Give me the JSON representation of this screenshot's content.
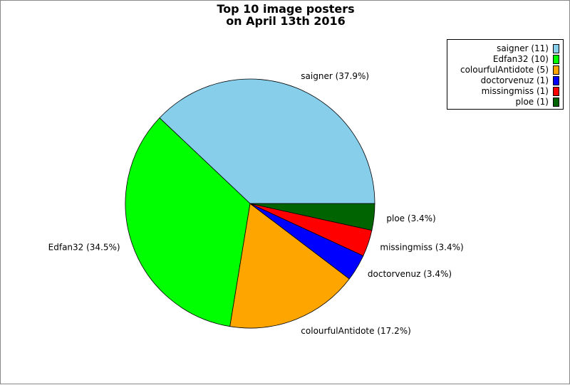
{
  "chart_data": {
    "type": "pie",
    "title": [
      "Top 10 image posters",
      "on April 13th 2016"
    ],
    "slices": [
      {
        "name": "saigner",
        "count": 11,
        "percent": 37.9,
        "label": "saigner (37.9%)",
        "legend": "saigner (11)",
        "color": "#87ceeb"
      },
      {
        "name": "Edfan32",
        "count": 10,
        "percent": 34.5,
        "label": "Edfan32 (34.5%)",
        "legend": "Edfan32 (10)",
        "color": "#00ff00"
      },
      {
        "name": "colourfulAntidote",
        "count": 5,
        "percent": 17.2,
        "label": "colourfulAntidote (17.2%)",
        "legend": "colourfulAntidote (5)",
        "color": "#ffa500"
      },
      {
        "name": "doctorvenuz",
        "count": 1,
        "percent": 3.4,
        "label": "doctorvenuz (3.4%)",
        "legend": "doctorvenuz (1)",
        "color": "#0000ff"
      },
      {
        "name": "missingmiss",
        "count": 1,
        "percent": 3.4,
        "label": "missingmiss (3.4%)",
        "legend": "missingmiss (1)",
        "color": "#ff0000"
      },
      {
        "name": "ploe",
        "count": 1,
        "percent": 3.4,
        "label": "ploe (3.4%)",
        "legend": "ploe (1)",
        "color": "#006400"
      }
    ],
    "start_direction": "east",
    "rotation": "counterclockwise",
    "legend_position": "top-right"
  }
}
